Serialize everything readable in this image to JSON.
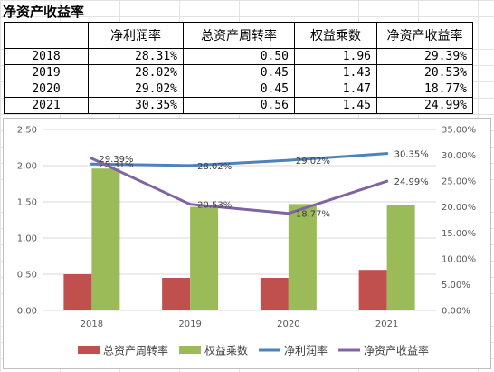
{
  "sheet": {
    "title": "净资产收益率",
    "headers": [
      "",
      "净利润率",
      "总资产周转率",
      "权益乘数",
      "净资产收益率"
    ],
    "rows": [
      [
        "2018",
        "28.31%",
        "0.50",
        "1.96",
        "29.39%"
      ],
      [
        "2019",
        "28.02%",
        "0.45",
        "1.43",
        "20.53%"
      ],
      [
        "2020",
        "29.02%",
        "0.45",
        "1.47",
        "18.77%"
      ],
      [
        "2021",
        "30.35%",
        "0.56",
        "1.45",
        "24.99%"
      ]
    ]
  },
  "chart_data": {
    "type": "bar",
    "categories": [
      "2018",
      "2019",
      "2020",
      "2021"
    ],
    "ylim": [
      0,
      2.5
    ],
    "y2lim": [
      0,
      0.35
    ],
    "yticks": [
      "0.00",
      "0.50",
      "1.00",
      "1.50",
      "2.00",
      "2.50"
    ],
    "y2ticks": [
      "0.00%",
      "5.00%",
      "10.00%",
      "15.00%",
      "20.00%",
      "25.00%",
      "30.00%",
      "35.00%"
    ],
    "grid": true,
    "legend_position": "bottom",
    "series": [
      {
        "name": "总资产周转率",
        "kind": "bar",
        "axis": "left",
        "color": "#c0504d",
        "values": [
          0.5,
          0.45,
          0.45,
          0.56
        ]
      },
      {
        "name": "权益乘数",
        "kind": "bar",
        "axis": "left",
        "color": "#9bbb59",
        "values": [
          1.96,
          1.43,
          1.47,
          1.45
        ]
      },
      {
        "name": "净利润率",
        "kind": "line",
        "axis": "right",
        "color": "#4f81bd",
        "values": [
          0.2831,
          0.2802,
          0.2902,
          0.3035
        ],
        "labels": [
          "28.31%",
          "28.02%",
          "29.02%",
          "30.35%"
        ]
      },
      {
        "name": "净资产收益率",
        "kind": "line",
        "axis": "right",
        "color": "#8064a2",
        "values": [
          0.2939,
          0.2053,
          0.1877,
          0.2499
        ],
        "labels": [
          "29.39%",
          "20.53%",
          "18.77%",
          "24.99%"
        ]
      }
    ]
  }
}
